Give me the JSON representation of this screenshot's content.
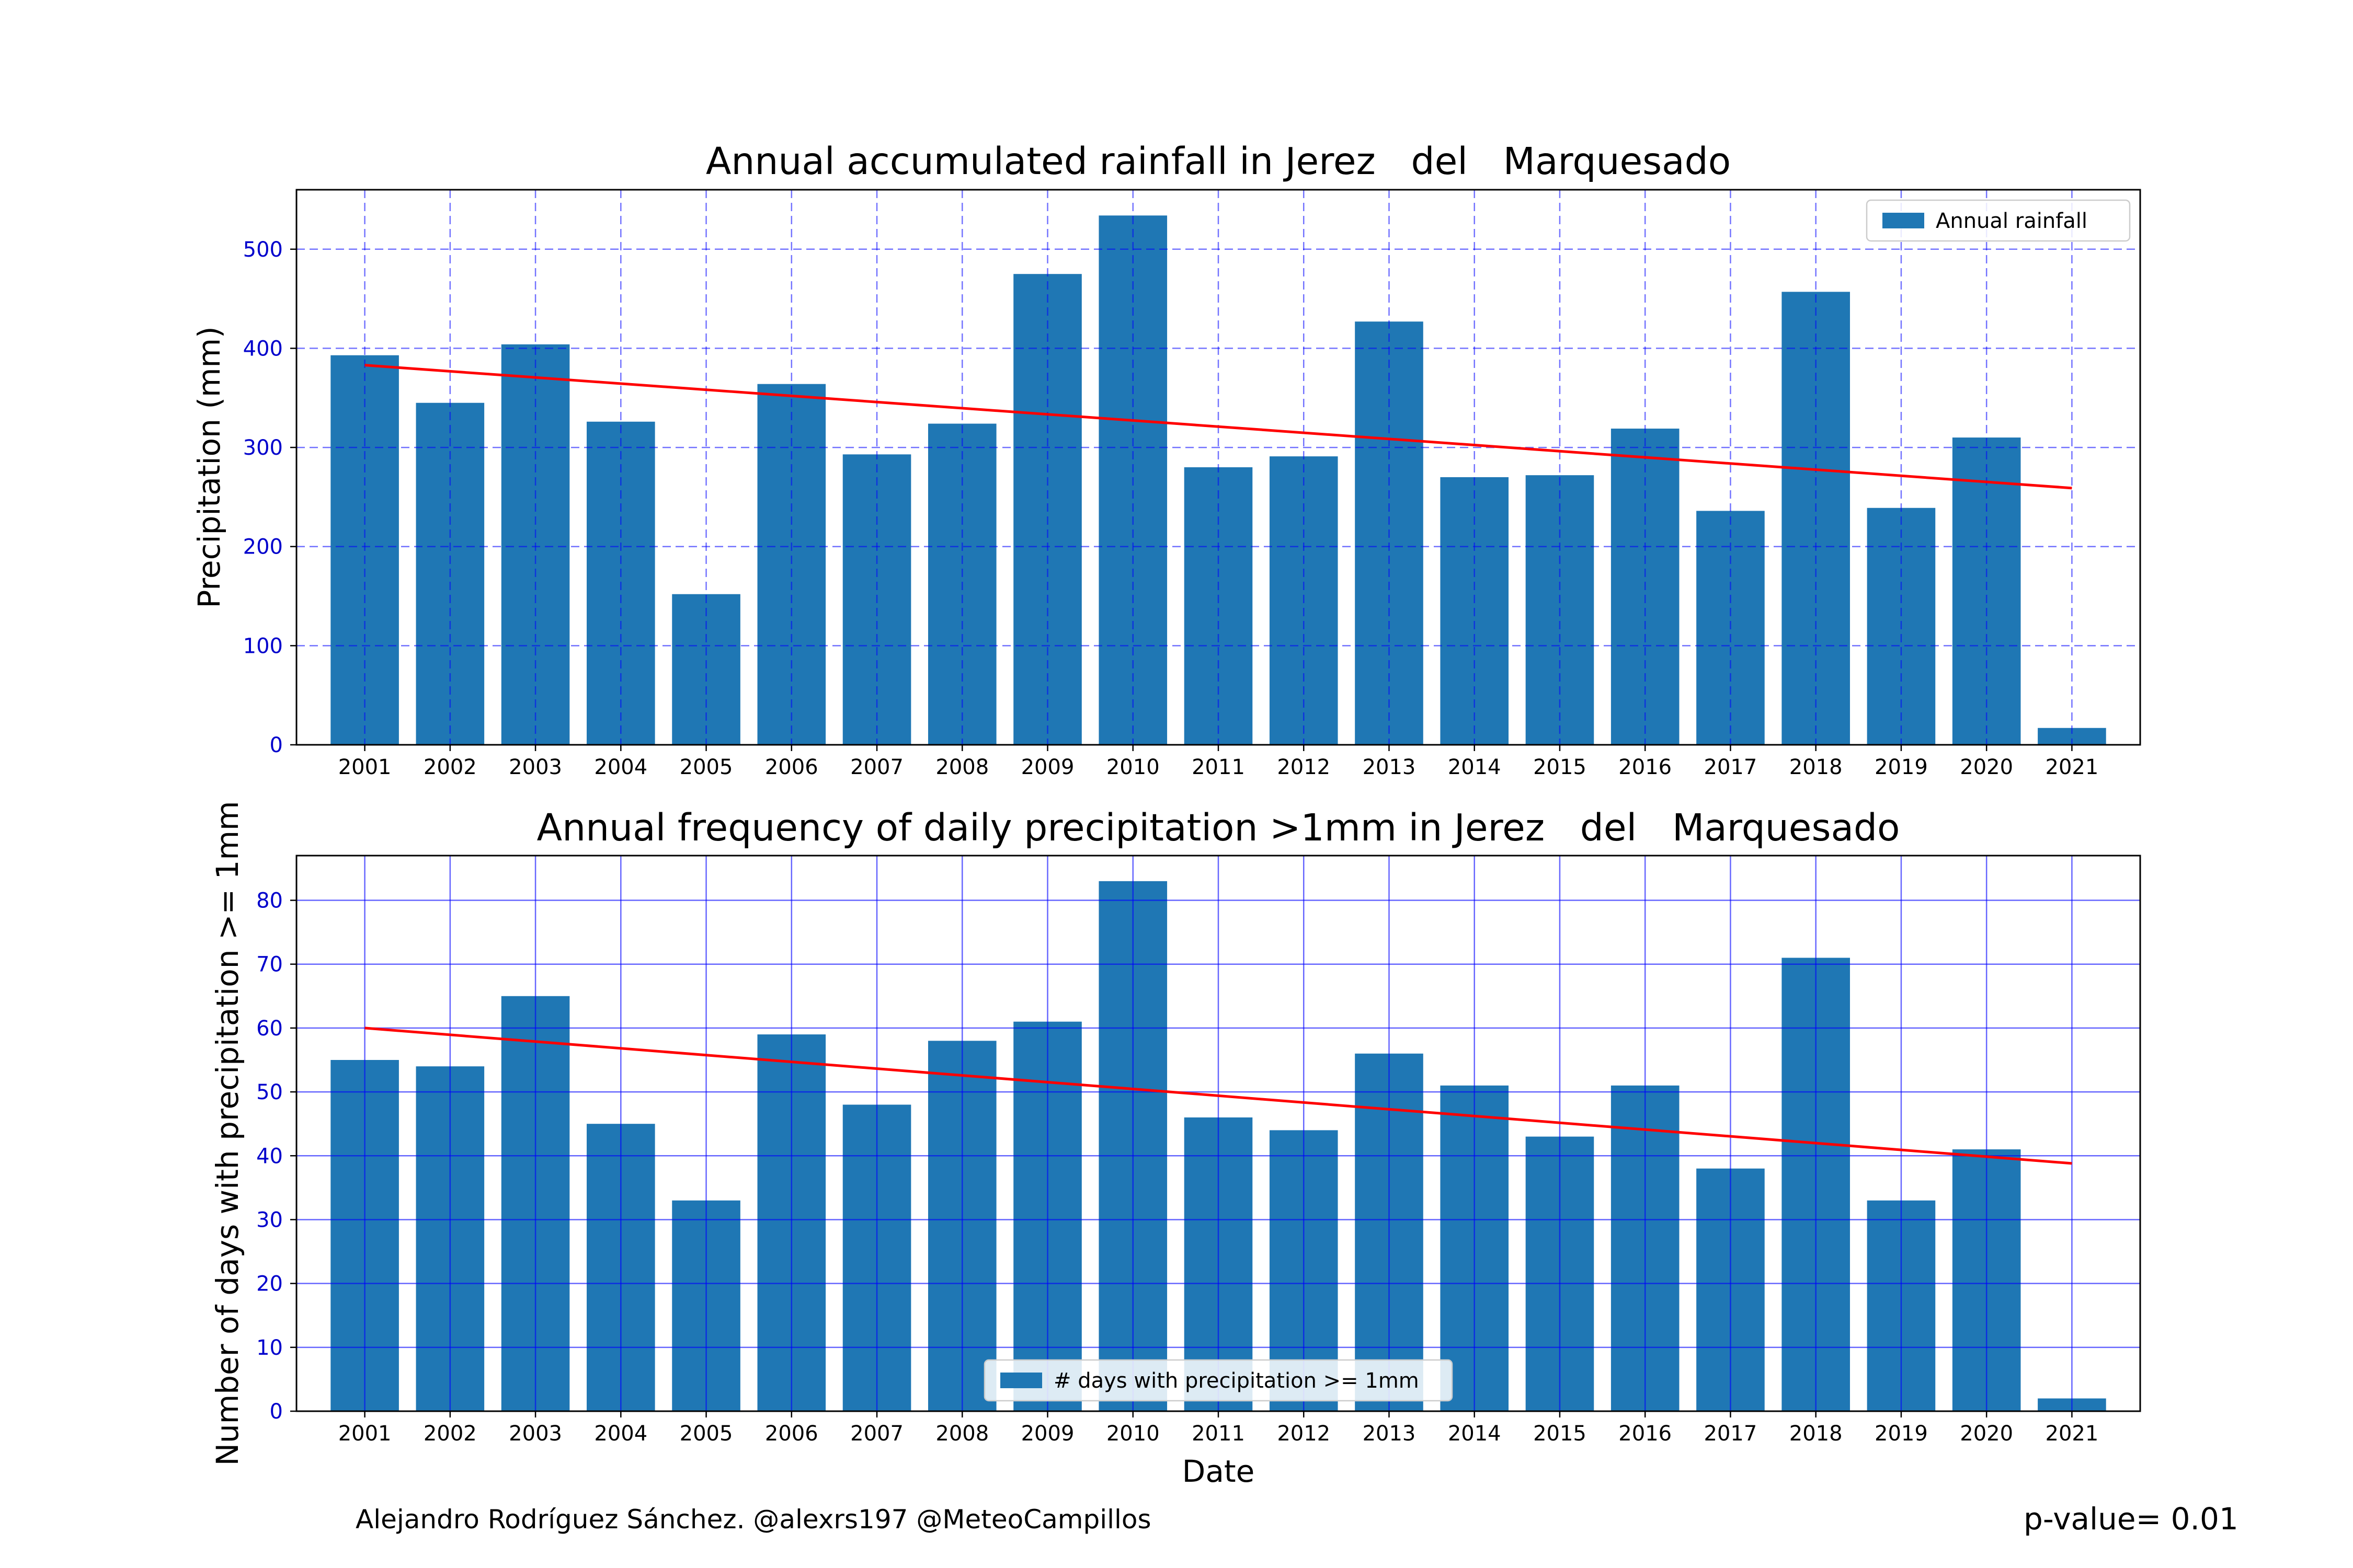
{
  "chart_data": [
    {
      "type": "bar",
      "title": "Annual accumulated rainfall in Jerez   del   Marquesado",
      "xlabel": "",
      "ylabel": "Precipitation (mm)",
      "categories": [
        "2001",
        "2002",
        "2003",
        "2004",
        "2005",
        "2006",
        "2007",
        "2008",
        "2009",
        "2010",
        "2011",
        "2012",
        "2013",
        "2014",
        "2015",
        "2016",
        "2017",
        "2018",
        "2019",
        "2020",
        "2021"
      ],
      "series": [
        {
          "name": "Annual rainfall",
          "values": [
            393,
            345,
            404,
            326,
            152,
            364,
            293,
            324,
            475,
            534,
            280,
            291,
            427,
            270,
            272,
            319,
            236,
            457,
            239,
            310,
            17
          ]
        }
      ],
      "trend_line": {
        "start": 383,
        "end": 259,
        "color": "#ff0000"
      },
      "ylim": [
        0,
        560
      ],
      "yticks": [
        0,
        100,
        200,
        300,
        400,
        500
      ],
      "grid": "dashed",
      "legend": "top-right",
      "colors": {
        "bar": "#1f77b4",
        "tick_label": "#0000cc",
        "grid": "#0000ff"
      }
    },
    {
      "type": "bar",
      "title": "Annual frequency of daily precipitation >1mm in Jerez   del   Marquesado",
      "xlabel": "Date",
      "ylabel": "Number of days with precipitation >= 1mm",
      "categories": [
        "2001",
        "2002",
        "2003",
        "2004",
        "2005",
        "2006",
        "2007",
        "2008",
        "2009",
        "2010",
        "2011",
        "2012",
        "2013",
        "2014",
        "2015",
        "2016",
        "2017",
        "2018",
        "2019",
        "2020",
        "2021"
      ],
      "series": [
        {
          "name": "# days with precipitation >= 1mm",
          "values": [
            55,
            54,
            65,
            45,
            33,
            59,
            48,
            58,
            61,
            83,
            46,
            44,
            56,
            51,
            43,
            51,
            38,
            71,
            33,
            41,
            2
          ]
        }
      ],
      "trend_line": {
        "start": 60,
        "end": 38.8,
        "color": "#ff0000"
      },
      "ylim": [
        0,
        87
      ],
      "yticks": [
        0,
        10,
        20,
        30,
        40,
        50,
        60,
        70,
        80
      ],
      "grid": "solid",
      "legend": "bottom-center",
      "colors": {
        "bar": "#1f77b4",
        "tick_label": "#0000cc",
        "grid": "#0000ff"
      }
    }
  ],
  "footer": {
    "credit": "Alejandro Rodríguez Sánchez. @alexrs197 @MeteoCampillos",
    "pvalue": "p-value= 0.01"
  }
}
